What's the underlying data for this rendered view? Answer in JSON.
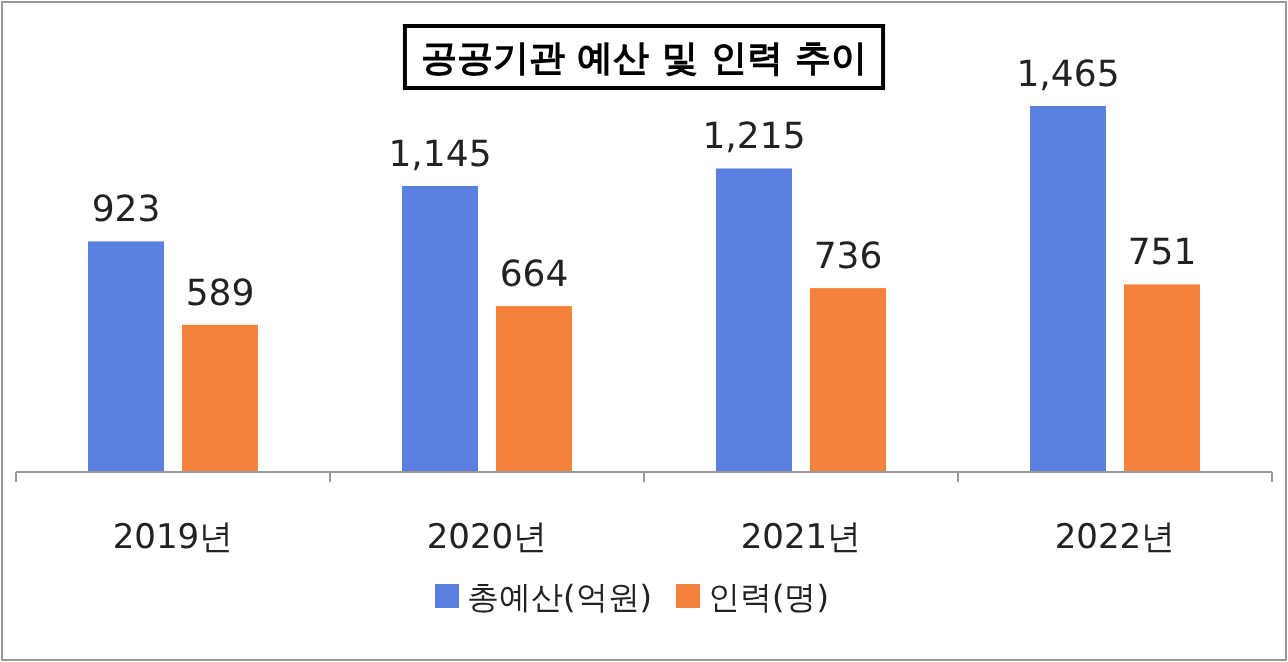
{
  "chart_data": {
    "type": "bar",
    "title": "공공기관 예산 및 인력 추이",
    "categories": [
      "2019년",
      "2020년",
      "2021년",
      "2022년"
    ],
    "series": [
      {
        "name": "총예산(억원)",
        "color": "#5b7fe0",
        "values": [
          923,
          1145,
          1215,
          1465
        ],
        "value_labels": [
          "923",
          "1,145",
          "1,215",
          "1,465"
        ]
      },
      {
        "name": "인력(명)",
        "color": "#f5823a",
        "values": [
          589,
          664,
          736,
          751
        ],
        "value_labels": [
          "589",
          "664",
          "736",
          "751"
        ]
      }
    ],
    "legend": "bottom"
  }
}
